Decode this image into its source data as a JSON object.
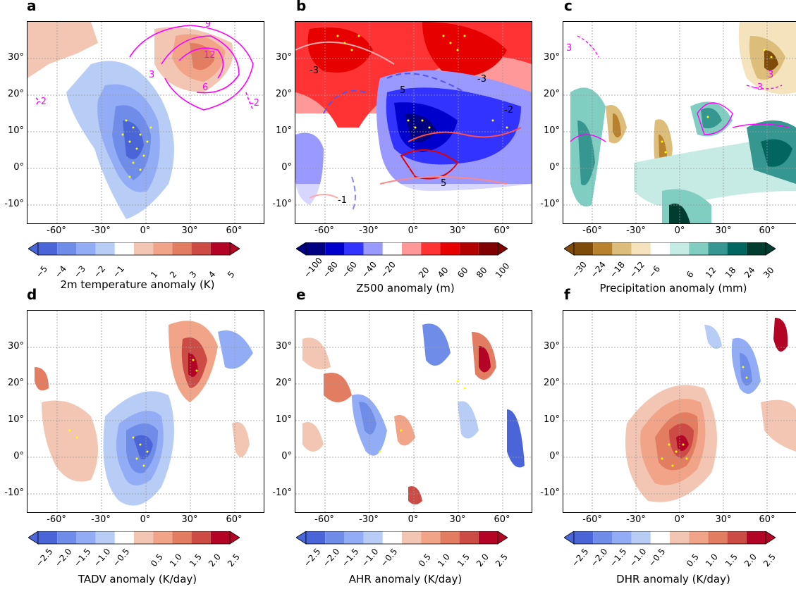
{
  "panels": [
    {
      "label": "a",
      "colorbar_title": "2m temperature anomaly (K)",
      "cb_ticks": [
        "−5",
        "−4",
        "−3",
        "−2",
        "−1",
        "1",
        "2",
        "3",
        "4",
        "5"
      ],
      "cmap": [
        "#4a65d8",
        "#6e8ce8",
        "#92adf5",
        "#b8cdf5",
        "#ffffff",
        "#f2c6b2",
        "#f2a488",
        "#e27d62",
        "#cc4c45",
        "#b40426"
      ]
    },
    {
      "label": "b",
      "colorbar_title": "Z500 anomaly (m)",
      "cb_ticks": [
        "−100",
        "−80",
        "−60",
        "−40",
        "−20",
        "20",
        "40",
        "60",
        "80",
        "100"
      ],
      "cmap": [
        "#000080",
        "#0000cd",
        "#3333ff",
        "#9999ff",
        "#ffffff",
        "#ff9999",
        "#ff3333",
        "#e60000",
        "#b30000",
        "#800000"
      ]
    },
    {
      "label": "c",
      "colorbar_title": "Precipitation anomaly (mm)",
      "cb_ticks": [
        "−30",
        "−24",
        "−18",
        "−12",
        "−6",
        "6",
        "12",
        "18",
        "24",
        "30"
      ],
      "cmap": [
        "#7f4b0b",
        "#b8812e",
        "#dcbd7a",
        "#f4e3bd",
        "#ffffff",
        "#c6ebe4",
        "#80cdc1",
        "#35978f",
        "#01665e",
        "#003c30"
      ]
    },
    {
      "label": "d",
      "colorbar_title": "TADV anomaly (K/day)",
      "cb_ticks": [
        "−2.5",
        "−2.0",
        "−1.5",
        "−1.0",
        "−0.5",
        "0.5",
        "1.0",
        "1.5",
        "2.0",
        "2.5"
      ],
      "cmap": [
        "#4a65d8",
        "#6e8ce8",
        "#92adf5",
        "#b8cdf5",
        "#ffffff",
        "#f2c6b2",
        "#f2a488",
        "#e27d62",
        "#cc4c45",
        "#b40426"
      ]
    },
    {
      "label": "e",
      "colorbar_title": "AHR anomaly (K/day)",
      "cb_ticks": [
        "−2.5",
        "−2.0",
        "−1.5",
        "−1.0",
        "−0.5",
        "0.5",
        "1.0",
        "1.5",
        "2.0",
        "2.5"
      ],
      "cmap": [
        "#4a65d8",
        "#6e8ce8",
        "#92adf5",
        "#b8cdf5",
        "#ffffff",
        "#f2c6b2",
        "#f2a488",
        "#e27d62",
        "#cc4c45",
        "#b40426"
      ]
    },
    {
      "label": "f",
      "colorbar_title": "DHR anomaly (K/day)",
      "cb_ticks": [
        "−2.5",
        "−2.0",
        "−1.5",
        "−1.0",
        "−0.5",
        "0.5",
        "1.0",
        "1.5",
        "2.0",
        "2.5"
      ],
      "cmap": [
        "#4a65d8",
        "#6e8ce8",
        "#92adf5",
        "#b8cdf5",
        "#ffffff",
        "#f2c6b2",
        "#f2a488",
        "#e27d62",
        "#cc4c45",
        "#b40426"
      ]
    }
  ],
  "axes": {
    "x_ticks": [
      "-60°",
      "-30°",
      "0°",
      "30°",
      "60°"
    ],
    "x_values": [
      -60,
      -30,
      0,
      30,
      60
    ],
    "y_ticks": [
      "30°",
      "20°",
      "10°",
      "0°",
      "-10°"
    ],
    "y_values": [
      30,
      20,
      10,
      0,
      -10
    ],
    "x_range": [
      -80,
      80
    ],
    "y_range": [
      -15,
      40
    ]
  },
  "contour_labels_a": [
    "9",
    "12",
    "3",
    "6",
    "-2",
    "-2"
  ],
  "contour_labels_b": [
    "-3",
    "-3",
    "5",
    "-2",
    "5",
    "-1"
  ],
  "contour_labels_c": [
    "3",
    "-3",
    "3"
  ]
}
